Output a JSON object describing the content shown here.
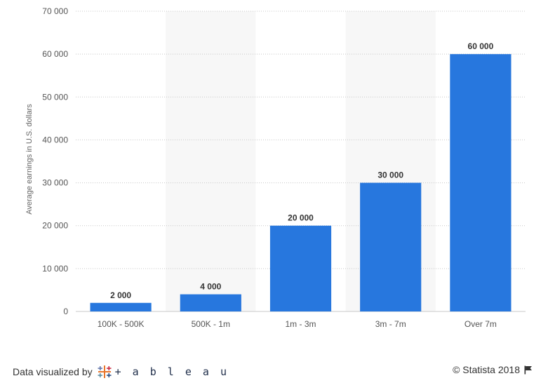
{
  "chart_data": {
    "type": "bar",
    "title": "",
    "xlabel": "",
    "ylabel": "Average earnings in U.S. dollars",
    "categories": [
      "100K - 500K",
      "500K - 1m",
      "1m - 3m",
      "3m - 7m",
      "Over 7m"
    ],
    "values": [
      2000,
      4000,
      20000,
      30000,
      60000
    ],
    "data_labels": [
      "2 000",
      "4 000",
      "20 000",
      "30 000",
      "60 000"
    ],
    "yticks": [
      0,
      10000,
      20000,
      30000,
      40000,
      50000,
      60000,
      70000
    ],
    "ytick_labels": [
      "0",
      "10 000",
      "20 000",
      "30 000",
      "40 000",
      "50 000",
      "60 000",
      "70 000"
    ],
    "ylim": [
      0,
      70000
    ],
    "grid": true,
    "bar_color": "#2777de",
    "band_color": "#f7f7f7"
  },
  "footer": {
    "credit_label": "Data visualized by",
    "tableau_word": "+ a b l e a u",
    "tableau_icon": "tableau-cross-icon",
    "copyright": "© Statista 2018",
    "flag_icon": "flag-icon"
  }
}
